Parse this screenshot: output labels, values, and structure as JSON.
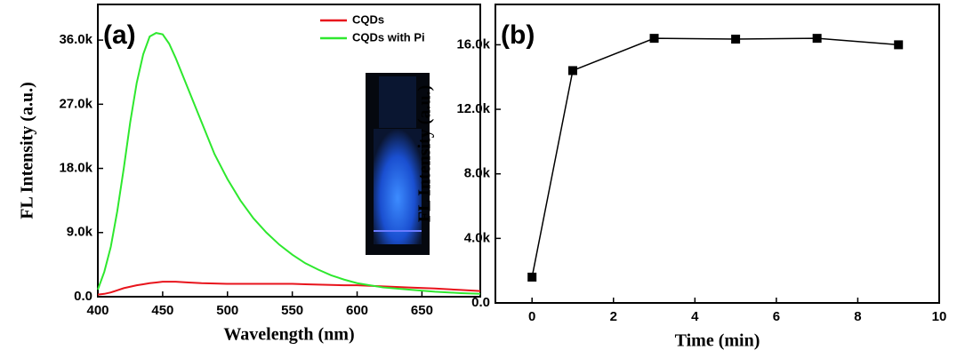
{
  "chart_data": [
    {
      "type": "line",
      "annotation": "(a)",
      "xlabel": "Wavelength (nm)",
      "ylabel": "FL Intensity (a.u.)",
      "xlim": [
        400,
        695
      ],
      "ylim": [
        0,
        41000
      ],
      "xticks": [
        400,
        450,
        500,
        550,
        600,
        650
      ],
      "yticks": [
        {
          "value": 0,
          "label": "0.0"
        },
        {
          "value": 9000,
          "label": "9.0k"
        },
        {
          "value": 18000,
          "label": "18.0k"
        },
        {
          "value": 27000,
          "label": "27.0k"
        },
        {
          "value": 36000,
          "label": "36.0k"
        }
      ],
      "legend": "upper right",
      "x": [
        400,
        405,
        410,
        415,
        420,
        425,
        430,
        435,
        440,
        445,
        450,
        455,
        460,
        470,
        480,
        490,
        500,
        510,
        520,
        530,
        540,
        550,
        560,
        570,
        580,
        590,
        600,
        620,
        640,
        660,
        680,
        695
      ],
      "series": [
        {
          "name": "CQDs",
          "color": "#e8141c",
          "values": [
            300,
            400,
            600,
            900,
            1200,
            1400,
            1600,
            1750,
            1900,
            2000,
            2100,
            2100,
            2100,
            2000,
            1900,
            1850,
            1800,
            1800,
            1800,
            1800,
            1800,
            1800,
            1750,
            1700,
            1650,
            1600,
            1600,
            1450,
            1300,
            1150,
            950,
            800
          ]
        },
        {
          "name": "CQDs with Pi",
          "color": "#2ee82e",
          "values": [
            1000,
            3500,
            7000,
            12000,
            18000,
            24500,
            30000,
            34000,
            36500,
            37000,
            36800,
            35500,
            33500,
            29000,
            24500,
            20000,
            16500,
            13500,
            11000,
            9000,
            7300,
            5900,
            4700,
            3800,
            3000,
            2400,
            1900,
            1300,
            1000,
            700,
            500,
            400
          ]
        }
      ]
    },
    {
      "type": "line",
      "annotation": "(b)",
      "xlabel": "Time (min)",
      "ylabel": "FL Intensity (a.u.)",
      "xlim": [
        -0.9,
        10
      ],
      "ylim": [
        0,
        18500
      ],
      "xticks": [
        0,
        2,
        4,
        6,
        8,
        10
      ],
      "yticks": [
        {
          "value": 0,
          "label": "0.0"
        },
        {
          "value": 4000,
          "label": "4.0k"
        },
        {
          "value": 8000,
          "label": "8.0k"
        },
        {
          "value": 12000,
          "label": "12.0k"
        },
        {
          "value": 16000,
          "label": "16.0k"
        }
      ],
      "marker": "square",
      "x": [
        0,
        1,
        3,
        5,
        7,
        9
      ],
      "series": [
        {
          "color": "#000000",
          "values": [
            1600,
            14400,
            16400,
            16350,
            16400,
            16000
          ]
        }
      ]
    }
  ]
}
